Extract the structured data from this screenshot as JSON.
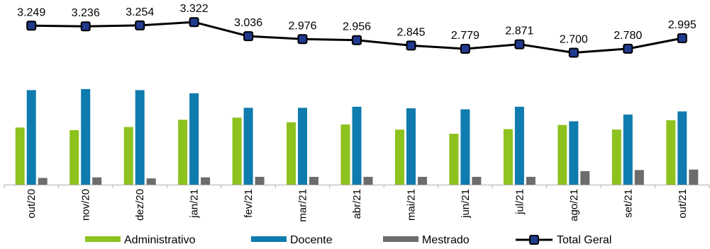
{
  "chart_data": {
    "type": "bar",
    "categories": [
      "out/20",
      "nov/20",
      "dez/20",
      "jan/21",
      "fev/21",
      "mar/21",
      "abr/21",
      "mai/21",
      "jun/21",
      "jul/21",
      "ago/21",
      "set/21",
      "out/21"
    ],
    "series": [
      {
        "name": "Administrativo",
        "kind": "bar",
        "color": "#8DC21F",
        "values": [
          1100,
          1050,
          1110,
          1250,
          1290,
          1200,
          1160,
          1060,
          980,
          1070,
          1150,
          1060,
          1240
        ]
      },
      {
        "name": "Docente",
        "kind": "bar",
        "color": "#0F7BAE",
        "values": [
          1820,
          1840,
          1820,
          1760,
          1480,
          1480,
          1500,
          1470,
          1450,
          1500,
          1220,
          1350,
          1410
        ]
      },
      {
        "name": "Mestrado",
        "kind": "bar",
        "color": "#6C6C6C",
        "values": [
          130,
          140,
          120,
          140,
          150,
          150,
          150,
          150,
          150,
          150,
          260,
          280,
          290
        ]
      },
      {
        "name": "Total Geral",
        "kind": "line",
        "color": "#000000",
        "marker_color": "#1F3A8F",
        "values": [
          3.249,
          3.236,
          3.254,
          3.322,
          3.036,
          2.976,
          2.956,
          2.845,
          2.779,
          2.871,
          2.7,
          2.78,
          2.995
        ],
        "labels": [
          "3.249",
          "3.236",
          "3.254",
          "3.322",
          "3.036",
          "2.976",
          "2.956",
          "2.845",
          "2.779",
          "2.871",
          "2.700",
          "2.780",
          "2.995"
        ]
      }
    ],
    "legend_position": "bottom",
    "grid": false
  }
}
